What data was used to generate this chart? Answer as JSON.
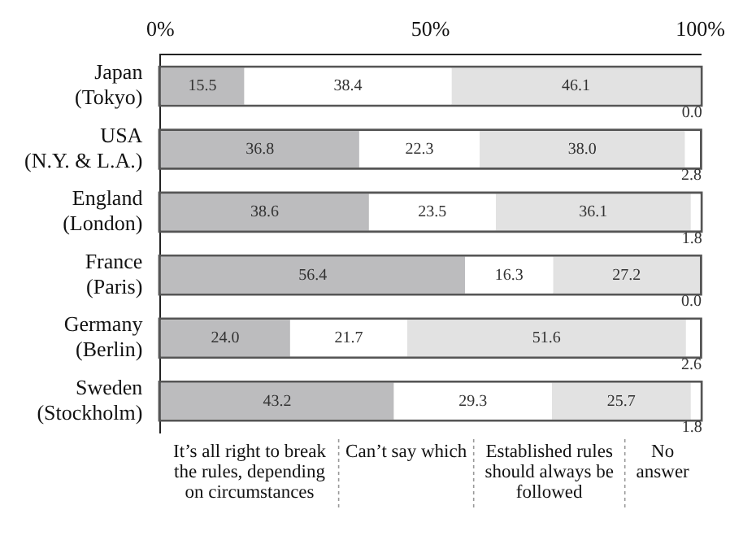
{
  "chart_data": {
    "type": "bar",
    "orientation": "horizontal",
    "stacked": true,
    "categories": [
      "Japan\n(Tokyo)",
      "USA\n(N.Y. & L.A.)",
      "England\n(London)",
      "France\n(Paris)",
      "Germany\n(Berlin)",
      "Sweden\n(Stockholm)"
    ],
    "series": [
      {
        "name": "It’s all right to break the rules, depending on circumstances",
        "color": "#bcbcbe",
        "values": [
          15.5,
          36.8,
          38.6,
          56.4,
          24.0,
          43.2
        ],
        "value_labels": [
          "15.5",
          "36.8",
          "38.6",
          "56.4",
          "24.0",
          "43.2"
        ]
      },
      {
        "name": "Can’t say which",
        "color": "#ffffff",
        "values": [
          38.4,
          22.3,
          23.5,
          16.3,
          21.7,
          29.3
        ],
        "value_labels": [
          "38.4",
          "22.3",
          "23.5",
          "16.3",
          "21.7",
          "29.3"
        ]
      },
      {
        "name": "Established rules should always be followed",
        "color": "#e2e2e2",
        "values": [
          46.1,
          38.0,
          36.1,
          27.2,
          51.6,
          25.7
        ],
        "value_labels": [
          "46.1",
          "38.0",
          "36.1",
          "27.2",
          "51.6",
          "25.7"
        ]
      },
      {
        "name": "No answer",
        "color": "#ffffff",
        "values": [
          0.0,
          2.8,
          1.8,
          0.0,
          2.6,
          1.8
        ],
        "value_labels": [
          "0.0",
          "2.8",
          "1.8",
          "0.0",
          "2.6",
          "1.8"
        ]
      }
    ],
    "xlim": [
      0,
      100
    ],
    "xticks": [
      {
        "value": 0,
        "label": "0%"
      },
      {
        "value": 50,
        "label": "50%"
      },
      {
        "value": 100,
        "label": "100%"
      }
    ],
    "legend": "bottom",
    "grid": false
  }
}
